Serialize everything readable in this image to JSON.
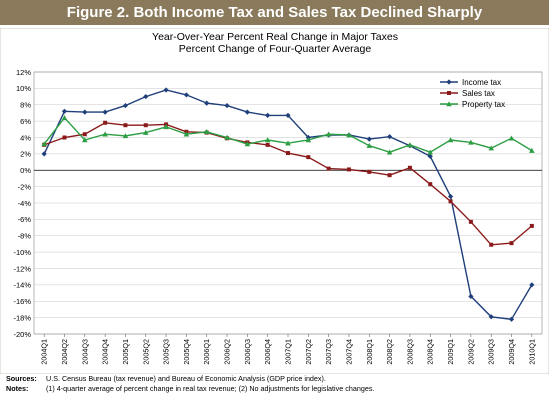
{
  "figure": {
    "banner": "Figure 2. Both Income Tax and Sales Tax Declined Sharply",
    "notes": {
      "sources_label": "Sources:",
      "sources_text": "U.S. Census Bureau (tax revenue) and Bureau of Economic Analysis (GDP price index).",
      "notes_label": "Notes:",
      "notes_text": "(1) 4-quarter average of percent change in real tax revenue; (2) No adjustments for legislative changes."
    }
  },
  "chart_data": {
    "type": "line",
    "title": "Year-Over-Year Percent Real Change in Major Taxes",
    "subtitle": "Percent Change of Four-Quarter Average",
    "ylim": [
      -20,
      12
    ],
    "ytick_step": 2,
    "yticks": [
      "12%",
      "10%",
      "8%",
      "6%",
      "4%",
      "2%",
      "0%",
      "-2%",
      "-4%",
      "-6%",
      "-8%",
      "-10%",
      "-12%",
      "-14%",
      "-16%",
      "-18%",
      "-20%"
    ],
    "x": [
      "2004Q1",
      "2004Q2",
      "2004Q3",
      "2004Q4",
      "2005Q1",
      "2005Q2",
      "2005Q3",
      "2005Q4",
      "2006Q1",
      "2006Q2",
      "2006Q3",
      "2006Q4",
      "2007Q1",
      "2007Q2",
      "2007Q3",
      "2007Q4",
      "2008Q1",
      "2008Q2",
      "2008Q3",
      "2008Q4",
      "2009Q1",
      "2009Q2",
      "2009Q3",
      "2009Q4",
      "2010Q1"
    ],
    "grid": true,
    "legend": "top-right",
    "series": [
      {
        "name": "Income tax",
        "color": "#1f3f7a",
        "marker": "diamond",
        "values": [
          2.0,
          7.2,
          7.1,
          7.1,
          7.9,
          9.0,
          9.8,
          9.2,
          8.2,
          7.9,
          7.1,
          6.7,
          6.7,
          4.0,
          4.3,
          4.3,
          3.8,
          4.1,
          3.0,
          1.7,
          -3.2,
          -15.4,
          -17.9,
          -18.2,
          -14.0
        ]
      },
      {
        "name": "Sales tax",
        "color": "#8b1a1a",
        "marker": "square",
        "values": [
          3.1,
          4.0,
          4.4,
          5.8,
          5.5,
          5.5,
          5.6,
          4.7,
          4.6,
          3.9,
          3.4,
          3.1,
          2.1,
          1.6,
          0.2,
          0.1,
          -0.2,
          -0.6,
          0.3,
          -1.7,
          -3.8,
          -6.3,
          -9.1,
          -8.9,
          -6.8
        ]
      },
      {
        "name": "Property tax",
        "color": "#2e9e44",
        "marker": "triangle",
        "values": [
          3.2,
          6.4,
          3.7,
          4.4,
          4.2,
          4.6,
          5.3,
          4.4,
          4.7,
          4.0,
          3.2,
          3.7,
          3.3,
          3.7,
          4.4,
          4.3,
          3.0,
          2.2,
          3.1,
          2.2,
          3.7,
          3.4,
          2.7,
          3.9,
          2.4
        ]
      }
    ]
  }
}
